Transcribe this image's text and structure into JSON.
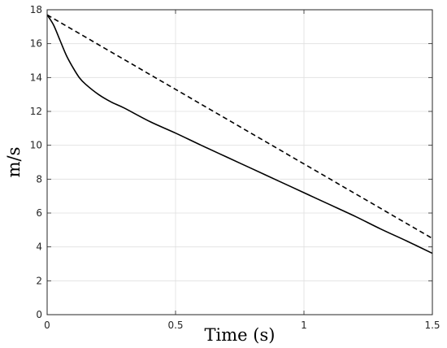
{
  "chart_data": {
    "type": "line",
    "title": "",
    "xlabel": "Time (s)",
    "ylabel": "m/s",
    "xlim": [
      0,
      1.5
    ],
    "ylim": [
      0,
      18
    ],
    "x_ticks": [
      0,
      0.5,
      1,
      1.5
    ],
    "x_tick_labels": [
      "0",
      "0.5",
      "1",
      "1.5"
    ],
    "y_ticks": [
      0,
      2,
      4,
      6,
      8,
      10,
      12,
      14,
      16,
      18
    ],
    "y_tick_labels": [
      "0",
      "2",
      "4",
      "6",
      "8",
      "10",
      "12",
      "14",
      "16",
      "18"
    ],
    "grid": true,
    "legend": "none",
    "series": [
      {
        "line_style": "solid",
        "color": "#000000",
        "x": [
          0,
          0.025,
          0.05,
          0.075,
          0.1,
          0.125,
          0.15,
          0.2,
          0.25,
          0.3,
          0.4,
          0.5,
          0.6,
          0.7,
          0.8,
          0.9,
          1.0,
          1.1,
          1.2,
          1.3,
          1.4,
          1.5
        ],
        "y": [
          17.7,
          17.1,
          16.2,
          15.3,
          14.6,
          14.0,
          13.6,
          13.0,
          12.55,
          12.2,
          11.4,
          10.72,
          10.0,
          9.3,
          8.6,
          7.9,
          7.2,
          6.5,
          5.8,
          5.05,
          4.35,
          3.62
        ]
      },
      {
        "line_style": "dashed",
        "color": "#000000",
        "x": [
          0,
          1.5
        ],
        "y": [
          17.7,
          4.5
        ]
      }
    ]
  }
}
